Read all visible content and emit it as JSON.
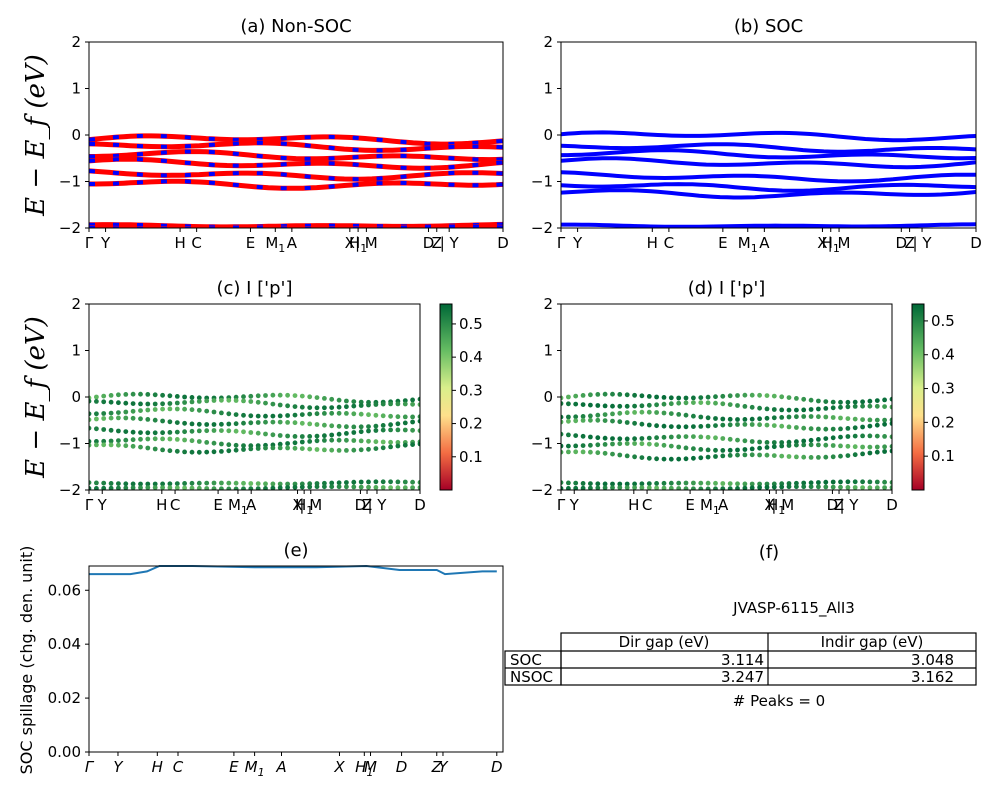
{
  "figure": {
    "ylabel_energy": "E − E_f (eV)",
    "ylabel_spillage": "SOC spillage (chg. den. unit)"
  },
  "chart_data": [
    {
      "id": "a",
      "type": "line",
      "title": "(a) Non-SOC",
      "ylim": [
        -2,
        2
      ],
      "yticks": [
        "2",
        "1",
        "0",
        "−1",
        "−2"
      ],
      "ytick_values": [
        2,
        1,
        0,
        -1,
        -2
      ],
      "xtick_labels": [
        "Γ",
        "Y",
        "H",
        "C",
        "E",
        "M1",
        "A",
        "X",
        "H1",
        "| M",
        "D",
        "Z",
        "| Y",
        "D"
      ],
      "xtick_positions": [
        0,
        0.04,
        0.22,
        0.26,
        0.39,
        0.45,
        0.49,
        0.63,
        0.65,
        0.67,
        0.82,
        0.84,
        0.87,
        1.0
      ],
      "bands_up_color": "#ff0000",
      "bands_dn_color": "#0000ff",
      "bands": [
        -0.1,
        -0.25,
        -0.45,
        -0.62,
        -0.85,
        -1.05,
        -1.95,
        -2.0
      ]
    },
    {
      "id": "b",
      "type": "line",
      "title": "(b) SOC",
      "ylim": [
        -2,
        2
      ],
      "yticks": [
        "2",
        "1",
        "0",
        "−1",
        "−2"
      ],
      "ytick_values": [
        2,
        1,
        0,
        -1,
        -2
      ],
      "xtick_labels": [
        "Γ",
        "Y",
        "H",
        "C",
        "E",
        "M1",
        "A",
        "X",
        "H1",
        "| M",
        "D",
        "Z",
        "| Y",
        "D"
      ],
      "xtick_positions": [
        0,
        0.04,
        0.22,
        0.26,
        0.39,
        0.45,
        0.49,
        0.63,
        0.65,
        0.67,
        0.82,
        0.84,
        0.87,
        1.0
      ],
      "bands_color": "#0000ff",
      "bands": [
        -0.02,
        -0.28,
        -0.42,
        -0.6,
        -0.9,
        -1.1,
        -1.25,
        -1.95
      ]
    },
    {
      "id": "c",
      "type": "scatter",
      "title": "(c)  I ['p']",
      "ylim": [
        -2,
        2
      ],
      "yticks": [
        "2",
        "1",
        "0",
        "−1",
        "−2"
      ],
      "ytick_values": [
        2,
        1,
        0,
        -1,
        -2
      ],
      "xtick_labels": [
        "Γ",
        "Y",
        "H",
        "C",
        "E",
        "M1",
        "A",
        "X",
        "H1",
        "| M",
        "D",
        "Z",
        "| Y",
        "D"
      ],
      "xtick_positions": [
        0,
        0.04,
        0.22,
        0.26,
        0.39,
        0.45,
        0.49,
        0.63,
        0.65,
        0.67,
        0.82,
        0.84,
        0.87,
        1.0
      ],
      "colorbar": {
        "min": 0,
        "max": 0.56,
        "ticks": [
          "0.5",
          "0.4",
          "0.3",
          "0.2",
          "0.1"
        ],
        "tick_values": [
          0.5,
          0.4,
          0.3,
          0.2,
          0.1
        ],
        "colormap": "RdYlGn"
      },
      "bands": [
        -0.02,
        -0.15,
        -0.35,
        -0.55,
        -0.75,
        -0.95,
        -1.1,
        -1.85,
        -1.95
      ]
    },
    {
      "id": "d",
      "type": "scatter",
      "title": "(d) I ['p']",
      "ylim": [
        -2,
        2
      ],
      "yticks": [
        "2",
        "1",
        "0",
        "−1",
        "−2"
      ],
      "ytick_values": [
        2,
        1,
        0,
        -1,
        -2
      ],
      "xtick_labels": [
        "Γ",
        "Y",
        "H",
        "C",
        "E",
        "M1",
        "A",
        "X",
        "H1",
        "| M",
        "D",
        "Z",
        "| Y",
        "D"
      ],
      "xtick_positions": [
        0,
        0.04,
        0.22,
        0.26,
        0.39,
        0.45,
        0.49,
        0.63,
        0.65,
        0.67,
        0.82,
        0.84,
        0.87,
        1.0
      ],
      "colorbar": {
        "min": 0,
        "max": 0.55,
        "ticks": [
          "0.5",
          "0.4",
          "0.3",
          "0.2",
          "0.1"
        ],
        "tick_values": [
          0.5,
          0.4,
          0.3,
          0.2,
          0.1
        ],
        "colormap": "RdYlGn"
      },
      "bands": [
        -0.02,
        -0.2,
        -0.42,
        -0.6,
        -0.88,
        -1.05,
        -1.25,
        -1.85,
        -1.95
      ]
    },
    {
      "id": "e",
      "type": "line",
      "title": "(e)",
      "ylabel": "SOC spillage (chg. den. unit)",
      "ylim": [
        0,
        0.069
      ],
      "yticks": [
        "0.06",
        "0.04",
        "0.02",
        "0.00"
      ],
      "ytick_values": [
        0.06,
        0.04,
        0.02,
        0.0
      ],
      "xtick_labels": [
        "Γ",
        "Y",
        "H",
        "C",
        "E",
        "M1",
        "A",
        "X",
        "H1",
        "M",
        "D",
        "Z",
        "Y",
        "D"
      ],
      "xtick_positions": [
        0,
        0.07,
        0.165,
        0.215,
        0.35,
        0.4,
        0.465,
        0.605,
        0.665,
        0.68,
        0.755,
        0.84,
        0.855,
        0.985
      ],
      "x": [
        0,
        0.1,
        0.14,
        0.17,
        0.25,
        0.4,
        0.55,
        0.67,
        0.75,
        0.84,
        0.86,
        0.95,
        0.985
      ],
      "y": [
        0.066,
        0.066,
        0.067,
        0.069,
        0.069,
        0.0685,
        0.0685,
        0.069,
        0.0675,
        0.0675,
        0.066,
        0.067,
        0.067
      ],
      "color": "#1f77b4"
    }
  ],
  "panel_f": {
    "title": "(f)",
    "material": "JVASP-6115_AlI3",
    "columns": [
      "Dir gap (eV)",
      "Indir gap (eV)"
    ],
    "rows": [
      {
        "label": "SOC",
        "dir": "3.114",
        "indir": "3.048"
      },
      {
        "label": "NSOC",
        "dir": "3.247",
        "indir": "3.162"
      }
    ],
    "peaks": "# Peaks = 0"
  }
}
